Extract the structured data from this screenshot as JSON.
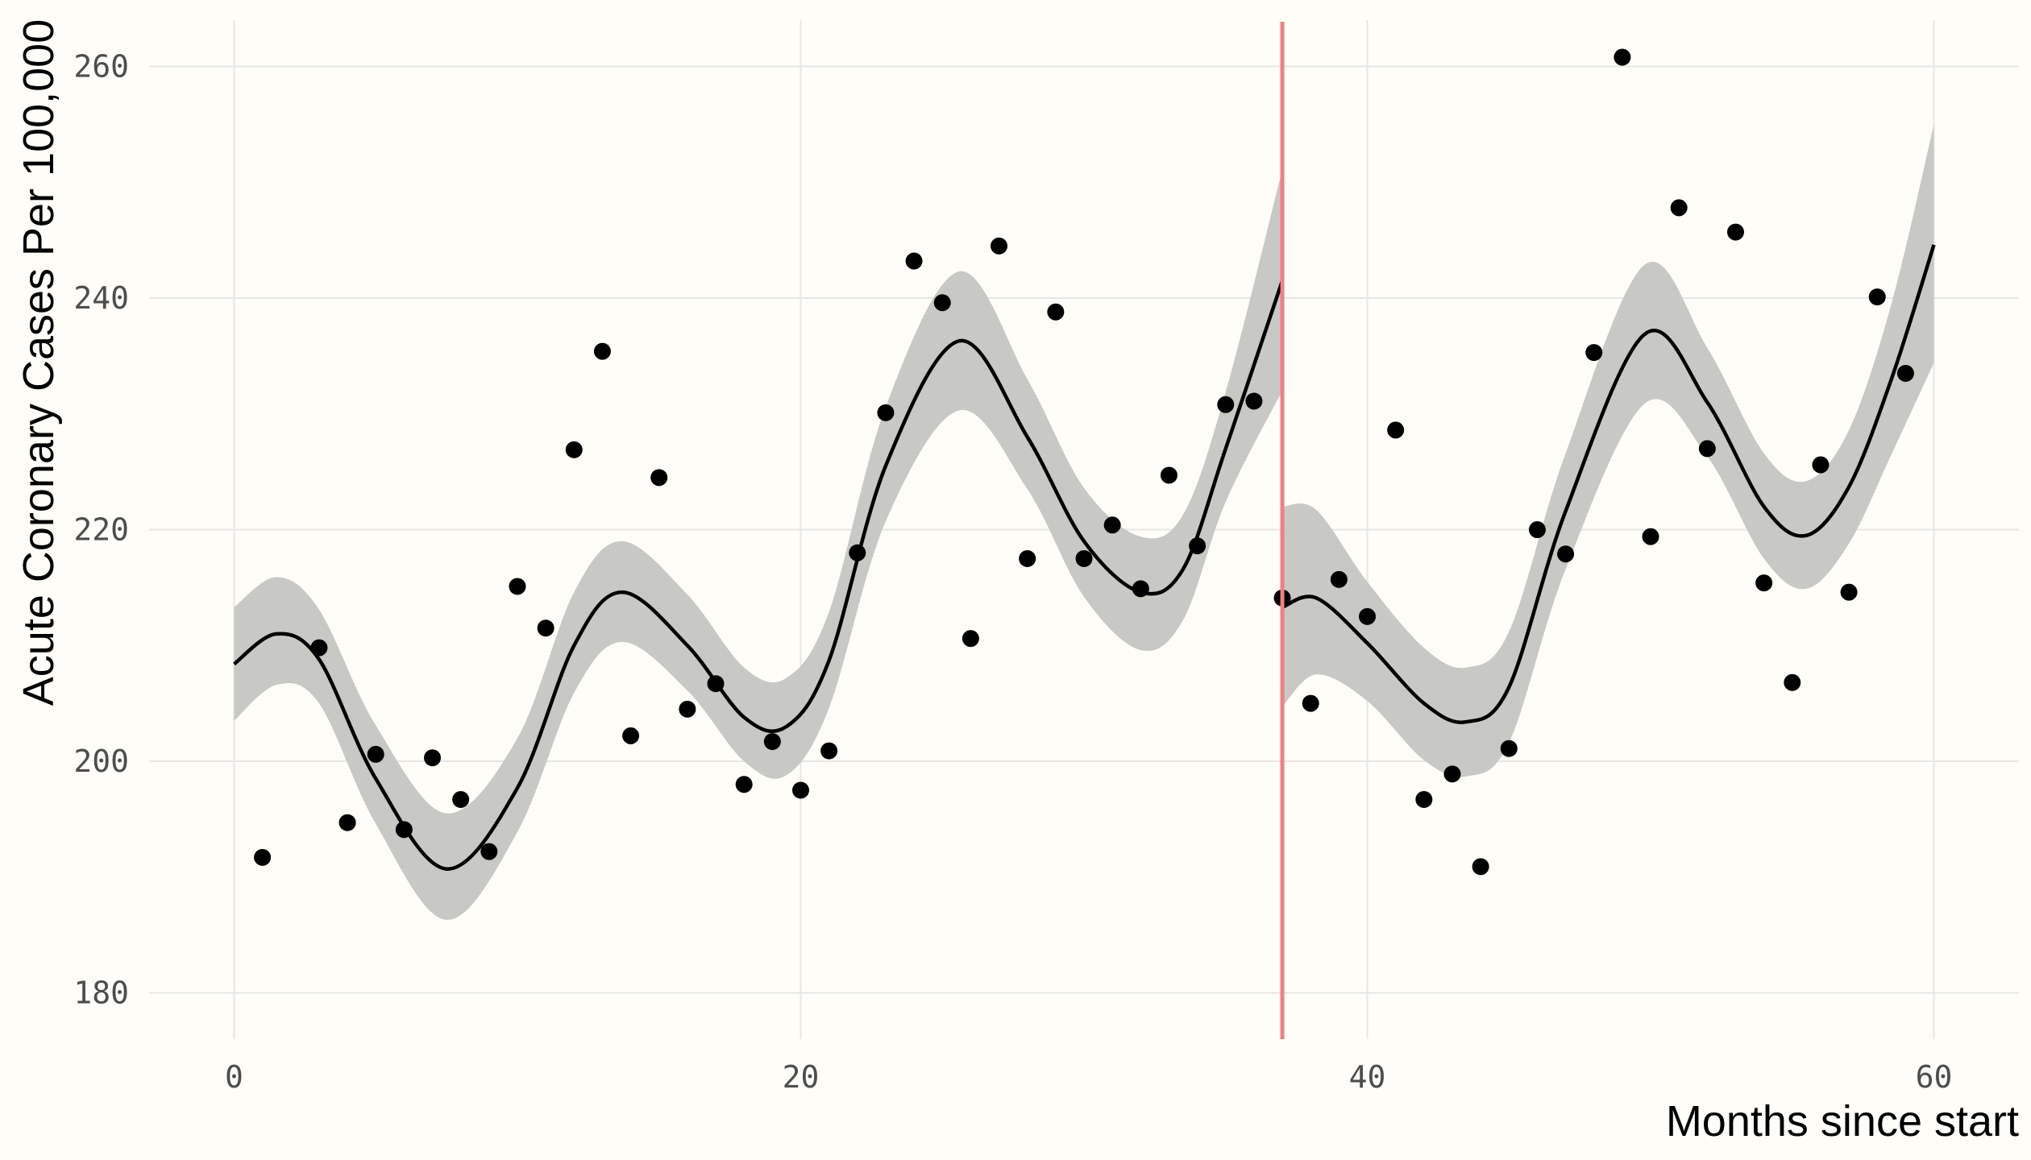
{
  "chart_data": {
    "type": "scatter",
    "title": "",
    "xlabel": "Months since start",
    "ylabel": "Acute Coronary Cases Per 100,000",
    "xlim": [
      -3,
      63
    ],
    "ylim": [
      176,
      264
    ],
    "x_ticks": [
      0,
      20,
      40,
      60
    ],
    "y_ticks": [
      180,
      200,
      220,
      240,
      260
    ],
    "grid": true,
    "intervention_month": 37,
    "intervention_color": "#f08080",
    "points": [
      {
        "x": 1,
        "y": 191.7
      },
      {
        "x": 3,
        "y": 209.8
      },
      {
        "x": 4,
        "y": 194.7
      },
      {
        "x": 5,
        "y": 200.6
      },
      {
        "x": 6,
        "y": 194.1
      },
      {
        "x": 7,
        "y": 200.3
      },
      {
        "x": 8,
        "y": 196.7
      },
      {
        "x": 9,
        "y": 192.2
      },
      {
        "x": 10,
        "y": 215.1
      },
      {
        "x": 11,
        "y": 211.5
      },
      {
        "x": 12,
        "y": 226.9
      },
      {
        "x": 13,
        "y": 235.4
      },
      {
        "x": 14,
        "y": 202.2
      },
      {
        "x": 15,
        "y": 224.5
      },
      {
        "x": 16,
        "y": 204.5
      },
      {
        "x": 17,
        "y": 206.7
      },
      {
        "x": 18,
        "y": 198.0
      },
      {
        "x": 19,
        "y": 201.7
      },
      {
        "x": 20,
        "y": 197.5
      },
      {
        "x": 21,
        "y": 200.9
      },
      {
        "x": 22,
        "y": 218.0
      },
      {
        "x": 23,
        "y": 230.1
      },
      {
        "x": 24,
        "y": 243.2
      },
      {
        "x": 25,
        "y": 239.6
      },
      {
        "x": 26,
        "y": 210.6
      },
      {
        "x": 27,
        "y": 244.5
      },
      {
        "x": 28,
        "y": 217.5
      },
      {
        "x": 29,
        "y": 238.8
      },
      {
        "x": 30,
        "y": 217.5
      },
      {
        "x": 31,
        "y": 220.4
      },
      {
        "x": 32,
        "y": 214.9
      },
      {
        "x": 33,
        "y": 224.7
      },
      {
        "x": 34,
        "y": 218.6
      },
      {
        "x": 35,
        "y": 230.8
      },
      {
        "x": 36,
        "y": 231.1
      },
      {
        "x": 37,
        "y": 214.1
      },
      {
        "x": 38,
        "y": 205.0
      },
      {
        "x": 39,
        "y": 215.7
      },
      {
        "x": 40,
        "y": 212.5
      },
      {
        "x": 41,
        "y": 228.6
      },
      {
        "x": 42,
        "y": 196.7
      },
      {
        "x": 43,
        "y": 198.9
      },
      {
        "x": 44,
        "y": 190.9
      },
      {
        "x": 45,
        "y": 201.1
      },
      {
        "x": 46,
        "y": 220.0
      },
      {
        "x": 47,
        "y": 217.9
      },
      {
        "x": 48,
        "y": 235.3
      },
      {
        "x": 49,
        "y": 260.8
      },
      {
        "x": 50,
        "y": 219.4
      },
      {
        "x": 51,
        "y": 247.8
      },
      {
        "x": 52,
        "y": 227.0
      },
      {
        "x": 53,
        "y": 245.7
      },
      {
        "x": 54,
        "y": 215.4
      },
      {
        "x": 55,
        "y": 206.8
      },
      {
        "x": 56,
        "y": 225.6
      },
      {
        "x": 57,
        "y": 214.6
      },
      {
        "x": 58,
        "y": 240.1
      },
      {
        "x": 59,
        "y": 233.5
      }
    ],
    "fit_segments": [
      {
        "x": [
          0,
          1.5,
          3,
          5,
          7.5,
          10,
          12,
          13.7,
          16,
          18,
          19.5,
          21,
          23,
          25.6,
          28,
          30,
          32,
          33.5,
          35,
          37
        ],
        "y": [
          208.4,
          211.0,
          208.8,
          198.5,
          190.7,
          197.7,
          210.0,
          214.6,
          210.0,
          203.8,
          203.0,
          208.7,
          225.5,
          236.3,
          228.0,
          219.0,
          214.6,
          216.6,
          227.0,
          241.5
        ],
        "lower": [
          203.5,
          206.6,
          205.0,
          194.6,
          186.3,
          193.9,
          205.9,
          210.3,
          206.1,
          200.0,
          198.8,
          204.6,
          220.7,
          230.3,
          223.5,
          214.2,
          209.6,
          212.2,
          222.4,
          232.0
        ],
        "upper": [
          213.3,
          215.9,
          213.1,
          203.1,
          195.5,
          202.0,
          214.6,
          219.0,
          214.4,
          208.1,
          207.2,
          212.9,
          230.6,
          242.3,
          233.0,
          223.6,
          219.4,
          221.3,
          231.9,
          251.1
        ]
      },
      {
        "x": [
          37,
          38.2,
          40,
          42,
          43.5,
          45,
          47,
          49.8,
          52,
          54,
          55.5,
          57,
          58.5,
          60
        ],
        "y": [
          213.3,
          214.1,
          210.2,
          205.0,
          203.4,
          206.4,
          221.6,
          236.9,
          231.0,
          222.0,
          219.5,
          223.7,
          233.0,
          244.6
        ],
        "lower": [
          204.7,
          207.5,
          205.2,
          200.1,
          198.7,
          201.6,
          216.6,
          230.9,
          226.3,
          217.5,
          214.9,
          218.8,
          226.5,
          234.4
        ],
        "upper": [
          222.0,
          221.7,
          215.5,
          209.8,
          208.1,
          211.2,
          226.6,
          242.9,
          235.7,
          226.6,
          224.2,
          228.6,
          239.5,
          255.0
        ]
      }
    ]
  }
}
